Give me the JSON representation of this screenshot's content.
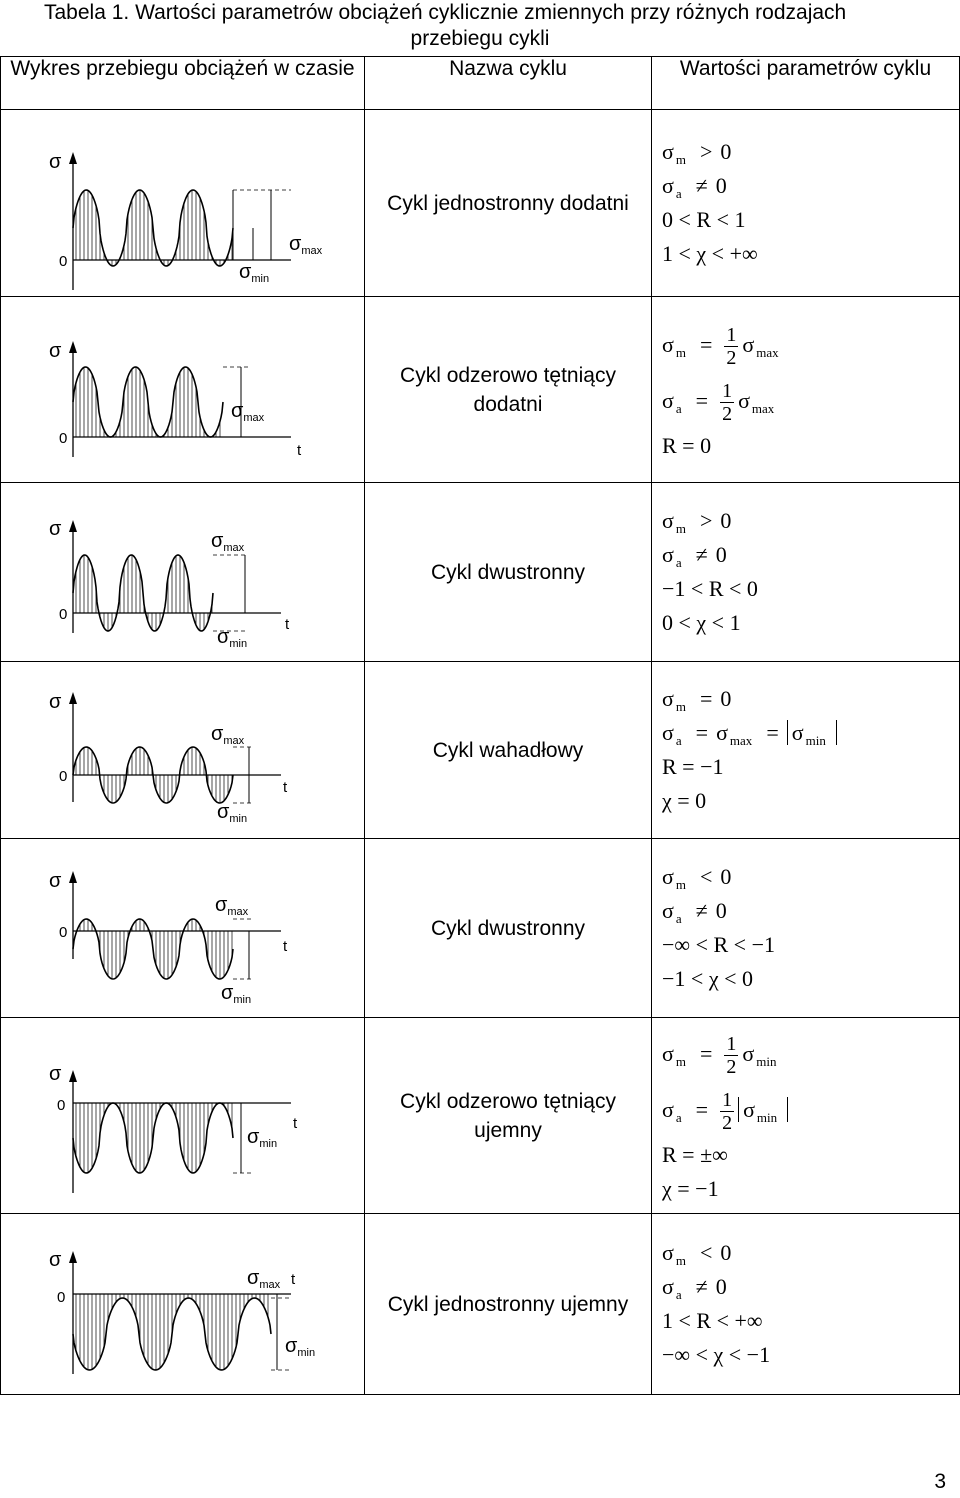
{
  "caption": {
    "line1": "Tabela 1. Wartości parametrów obciążeń cyklicznie zmiennych przy różnych rodzajach",
    "line2": "przebiegu cykli"
  },
  "headers": {
    "col1": "Wykres przebiegu obciążeń w czasie",
    "col2": "Nazwa cyklu",
    "col3": "Wartości parametrów cyklu"
  },
  "symbols": {
    "sigma": "σ",
    "zero": "0",
    "t": "t",
    "max": "max",
    "min": "min"
  },
  "rows": [
    {
      "name": "Cykl jednostronny dodatni",
      "params": [
        {
          "lhs": "σ",
          "sub": "m",
          "op": ">",
          "rhs": "0"
        },
        {
          "lhs": "σ",
          "sub": "a",
          "op": "≠",
          "rhs": "0"
        },
        {
          "text": "0 < R < 1"
        },
        {
          "text": "1 < χ < +∞"
        }
      ]
    },
    {
      "name": "Cykl odzerowo tętniący dodatni",
      "frac_num": "1",
      "frac_den": "2",
      "params": [
        {
          "lhs": "σ",
          "sub": "m",
          "op": "=",
          "sub2": "max"
        },
        {
          "lhs": "σ",
          "sub": "a",
          "op": "=",
          "sub2": "max"
        },
        {
          "text": "R = 0"
        }
      ]
    },
    {
      "name": "Cykl dwustronny",
      "params": [
        {
          "lhs": "σ",
          "sub": "m",
          "op": ">",
          "rhs": "0"
        },
        {
          "lhs": "σ",
          "sub": "a",
          "op": "≠",
          "rhs": "0"
        },
        {
          "text": "−1 < R < 0"
        },
        {
          "text": "0 < χ < 1"
        }
      ]
    },
    {
      "name": "Cykl wahadłowy",
      "params": [
        {
          "lhs": "σ",
          "sub": "m",
          "op": "=",
          "rhs": "0"
        },
        {
          "text_a": "σ",
          "sub_a": "a",
          "eq1": "=",
          "text_b": "σ",
          "sub_b": "max",
          "eq2": "=",
          "text_c": "σ",
          "sub_c": "min"
        },
        {
          "text": "R = −1"
        },
        {
          "text": "χ = 0"
        }
      ]
    },
    {
      "name": "Cykl dwustronny",
      "params": [
        {
          "lhs": "σ",
          "sub": "m",
          "op": "<",
          "rhs": "0"
        },
        {
          "lhs": "σ",
          "sub": "a",
          "op": "≠",
          "rhs": "0"
        },
        {
          "text": "−∞ < R < −1"
        },
        {
          "text": "−1 < χ < 0"
        }
      ]
    },
    {
      "name": "Cykl odzerowo tętniący ujemny",
      "frac_num": "1",
      "frac_den": "2",
      "params": [
        {
          "lhs": "σ",
          "sub": "m",
          "op": "=",
          "sub2": "min"
        },
        {
          "lhs": "σ",
          "sub": "a",
          "op": "=",
          "sub2": "min"
        },
        {
          "text": "R = ±∞"
        },
        {
          "text": "χ = −1"
        }
      ]
    },
    {
      "name": "Cykl jednostronny ujemny",
      "params": [
        {
          "lhs": "σ",
          "sub": "m",
          "op": "<",
          "rhs": "0"
        },
        {
          "lhs": "σ",
          "sub": "a",
          "op": "≠",
          "rhs": "0"
        },
        {
          "text": "1 < R < +∞"
        },
        {
          "text": "−∞ < χ < −1"
        }
      ]
    }
  ],
  "page_number": "3"
}
